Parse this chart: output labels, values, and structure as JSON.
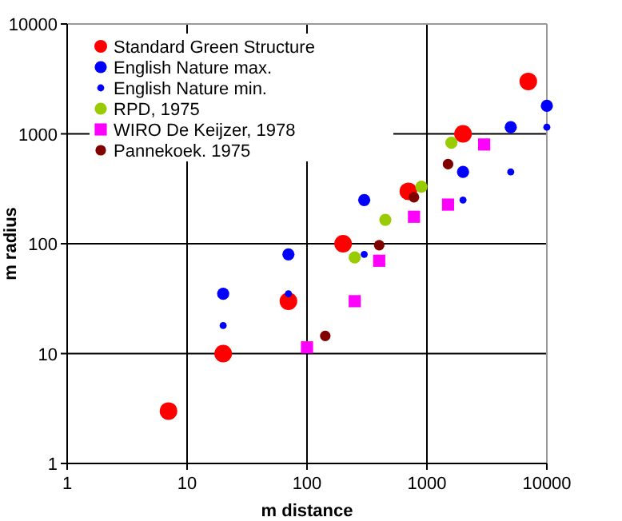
{
  "chart_data": {
    "type": "scatter",
    "xlabel": "m distance",
    "ylabel": "m radius",
    "log": "xy",
    "xlim": [
      1,
      10000
    ],
    "ylim": [
      1,
      10000
    ],
    "xticks": [
      1,
      10,
      100,
      1000,
      10000
    ],
    "yticks": [
      1,
      10,
      100,
      1000,
      10000
    ],
    "grid": true,
    "legend": "top left",
    "series": [
      {
        "name": "Standard Green Structure",
        "color": "#ff0000",
        "marker": "circle",
        "x": [
          7,
          20,
          70,
          200,
          700,
          2000,
          7000
        ],
        "values": [
          3,
          10,
          30,
          100,
          300,
          1000,
          3000
        ]
      },
      {
        "name": "English Nature max.",
        "color": "#0000ff",
        "marker": "circle",
        "x": [
          20,
          70,
          300,
          2000,
          5000,
          10000
        ],
        "values": [
          35,
          80,
          250,
          450,
          1150,
          1800
        ]
      },
      {
        "name": "English Nature min.",
        "color": "#0000ff",
        "marker": "circle",
        "x": [
          20,
          70,
          300,
          2000,
          5000,
          10000
        ],
        "values": [
          18,
          35,
          80,
          250,
          450,
          1150
        ]
      },
      {
        "name": "RPD, 1975",
        "color": "#99cc00",
        "marker": "circle",
        "x": [
          250,
          450,
          900,
          1600
        ],
        "values": [
          75,
          165,
          330,
          830
        ]
      },
      {
        "name": "WIRO De Keijzer, 1978",
        "color": "#ff00ff",
        "marker": "square",
        "x": [
          100,
          250,
          400,
          780,
          1500,
          3000
        ],
        "values": [
          11.4,
          30,
          70,
          176,
          227,
          800
        ]
      },
      {
        "name": "Pannekoek. 1975",
        "color": "#800000",
        "marker": "circle",
        "x": [
          142,
          400,
          780,
          1500
        ],
        "values": [
          14.5,
          97,
          265,
          530
        ]
      }
    ]
  }
}
